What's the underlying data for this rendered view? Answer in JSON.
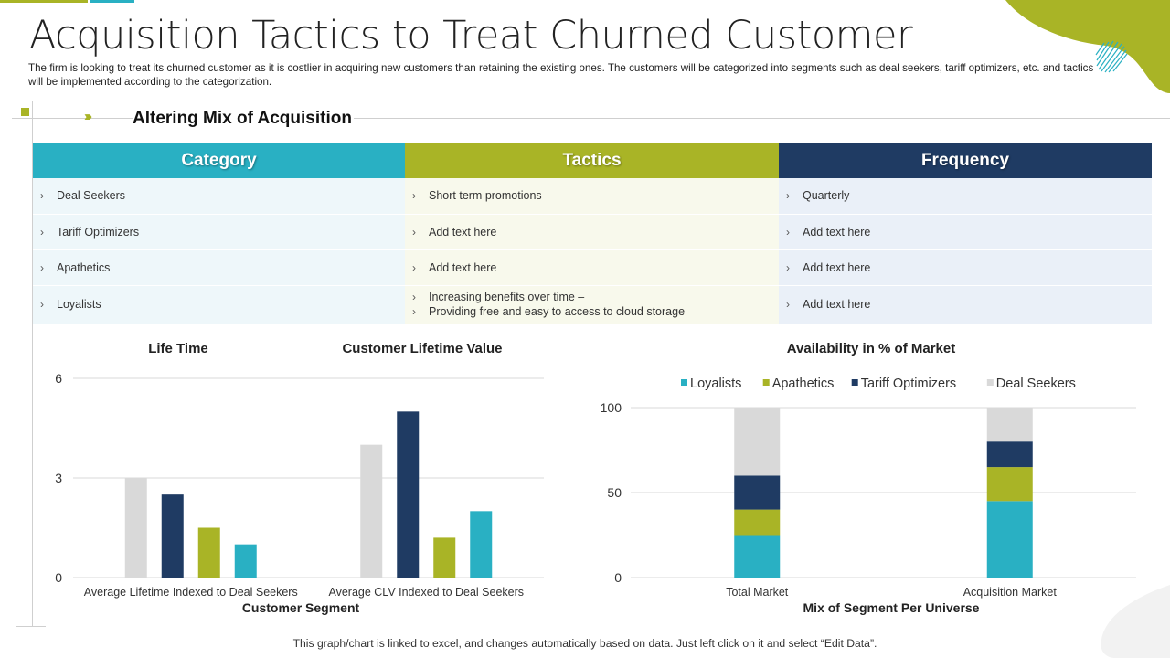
{
  "page": {
    "title": "Acquisition Tactics to Treat Churned Customer",
    "subtitle": "The firm is looking to treat its churned customer as it is costlier in acquiring new customers than retaining the existing ones. The customers will be categorized into segments such as deal seekers, tariff optimizers, etc. and tactics will be implemented according to the categorization.",
    "section_title": "Altering Mix of Acquisition",
    "footnote": "This graph/chart is linked to excel, and changes automatically based on data. Just left click on it and select “Edit Data”."
  },
  "table": {
    "headers": [
      "Category",
      "Tactics",
      "Frequency"
    ],
    "rows": [
      {
        "category": "Deal Seekers",
        "tactics": [
          "Short term promotions"
        ],
        "frequency": "Quarterly"
      },
      {
        "category": "Tariff Optimizers",
        "tactics": [
          "Add text here"
        ],
        "frequency": "Add text here"
      },
      {
        "category": "Apathetics",
        "tactics": [
          "Add text here"
        ],
        "frequency": "Add text here"
      },
      {
        "category": "Loyalists",
        "tactics": [
          "Increasing benefits over time –",
          "Providing free and easy to access to cloud storage"
        ],
        "frequency": "Add text here"
      }
    ]
  },
  "colors": {
    "teal": "#29b0c3",
    "olive": "#a9b426",
    "navy": "#1f3b63",
    "gray": "#d9d9d9"
  },
  "chart_data": [
    {
      "type": "bar",
      "title_left": "Life Time",
      "title_right": "Customer Lifetime Value",
      "xlabel": "Customer Segment",
      "categories": [
        "Average Lifetime Indexed to Deal Seekers",
        "Average CLV Indexed to Deal Seekers"
      ],
      "series": [
        {
          "name": "Deal Seekers",
          "color": "#d9d9d9",
          "values": [
            3,
            4
          ]
        },
        {
          "name": "Tariff Optimizers",
          "color": "#1f3b63",
          "values": [
            2.5,
            5
          ]
        },
        {
          "name": "Apathetics",
          "color": "#a9b426",
          "values": [
            1.5,
            1.2
          ]
        },
        {
          "name": "Loyalists",
          "color": "#29b0c3",
          "values": [
            1,
            2
          ]
        }
      ],
      "yticks": [
        0,
        3,
        6
      ],
      "ylim": [
        0,
        6
      ]
    },
    {
      "type": "bar",
      "stacked": true,
      "title": "Availability in % of Market",
      "xlabel": "Mix of Segment Per Universe",
      "categories": [
        "Total Market",
        "Acquisition Market"
      ],
      "series": [
        {
          "name": "Loyalists",
          "color": "#29b0c3",
          "values": [
            25,
            45
          ]
        },
        {
          "name": "Apathetics",
          "color": "#a9b426",
          "values": [
            15,
            20
          ]
        },
        {
          "name": "Tariff Optimizers",
          "color": "#1f3b63",
          "values": [
            20,
            15
          ]
        },
        {
          "name": "Deal Seekers",
          "color": "#d9d9d9",
          "values": [
            40,
            20
          ]
        }
      ],
      "yticks": [
        0,
        50,
        100
      ],
      "ylim": [
        0,
        100
      ],
      "legend": "top"
    }
  ]
}
